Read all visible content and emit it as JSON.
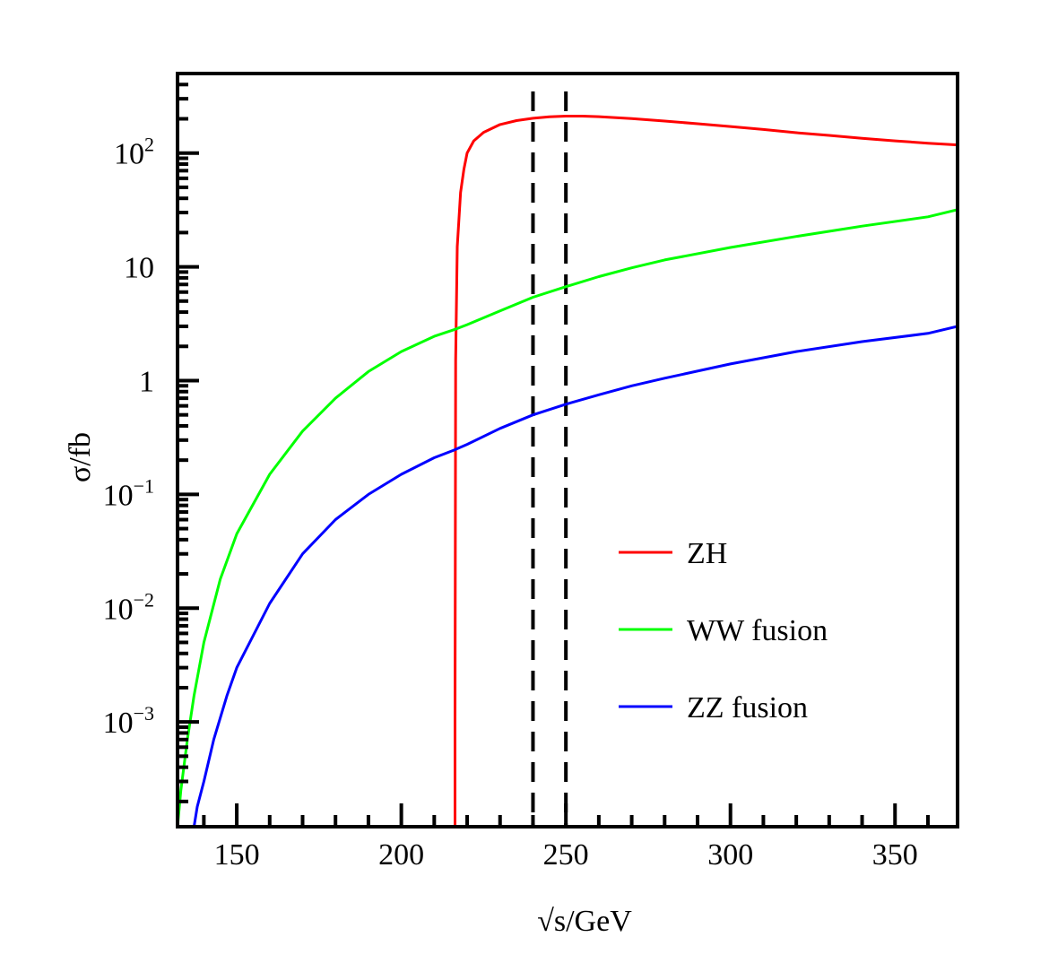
{
  "chart_data": {
    "type": "line",
    "xlabel": "√s/GeV",
    "ylabel": "σ/fb",
    "xlim": [
      132,
      369
    ],
    "ylim": [
      0.00012,
      500
    ],
    "yscale": "log",
    "x_ticks": [
      {
        "value": 150,
        "label": "150"
      },
      {
        "value": 200,
        "label": "200"
      },
      {
        "value": 250,
        "label": "250"
      },
      {
        "value": 300,
        "label": "300"
      },
      {
        "value": 350,
        "label": "350"
      }
    ],
    "y_ticks": [
      {
        "value": 0.001,
        "base": "10",
        "exp": "−3"
      },
      {
        "value": 0.01,
        "base": "10",
        "exp": "−2"
      },
      {
        "value": 0.1,
        "base": "10",
        "exp": "−1"
      },
      {
        "value": 1,
        "base": "1",
        "exp": ""
      },
      {
        "value": 10,
        "base": "10",
        "exp": ""
      },
      {
        "value": 100,
        "base": "10",
        "exp": "2"
      }
    ],
    "vlines": [
      240,
      250
    ],
    "legend_position": "lower-right",
    "series": [
      {
        "name": "ZH",
        "color": "#ff0000",
        "x": [
          216.3,
          216.3,
          216.5,
          217,
          218,
          219,
          220,
          222,
          225,
          230,
          235,
          240,
          245,
          250,
          255,
          260,
          270,
          280,
          290,
          300,
          310,
          320,
          330,
          340,
          350,
          360,
          369
        ],
        "y": [
          0.00012,
          0.001,
          1.5,
          15,
          45,
          72,
          100,
          128,
          152,
          178,
          193,
          202,
          208,
          211,
          211,
          209,
          201,
          191,
          181,
          171,
          161,
          151,
          143,
          135,
          128,
          122,
          118
        ]
      },
      {
        "name": "WW fusion",
        "color": "#00ff00",
        "x": [
          132,
          133,
          135,
          137,
          140,
          145,
          150,
          160,
          170,
          180,
          190,
          200,
          210,
          216,
          220,
          230,
          240,
          250,
          260,
          270,
          280,
          300,
          320,
          340,
          360,
          369
        ],
        "y": [
          0.00012,
          0.00025,
          0.0007,
          0.0017,
          0.005,
          0.018,
          0.045,
          0.15,
          0.36,
          0.7,
          1.2,
          1.8,
          2.45,
          2.8,
          3.1,
          4.1,
          5.4,
          6.7,
          8.2,
          9.8,
          11.5,
          14.8,
          18.5,
          22.8,
          27.5,
          31.8
        ]
      },
      {
        "name": "ZZ fusion",
        "color": "#0000ff",
        "x": [
          137,
          138,
          140,
          143,
          147,
          150,
          160,
          170,
          180,
          190,
          200,
          210,
          216,
          220,
          230,
          240,
          250,
          260,
          270,
          280,
          300,
          320,
          340,
          360,
          369
        ],
        "y": [
          0.00012,
          0.00018,
          0.0003,
          0.0007,
          0.0017,
          0.003,
          0.011,
          0.03,
          0.06,
          0.1,
          0.15,
          0.21,
          0.245,
          0.275,
          0.38,
          0.5,
          0.62,
          0.75,
          0.9,
          1.05,
          1.4,
          1.8,
          2.2,
          2.6,
          3.0
        ]
      }
    ]
  }
}
